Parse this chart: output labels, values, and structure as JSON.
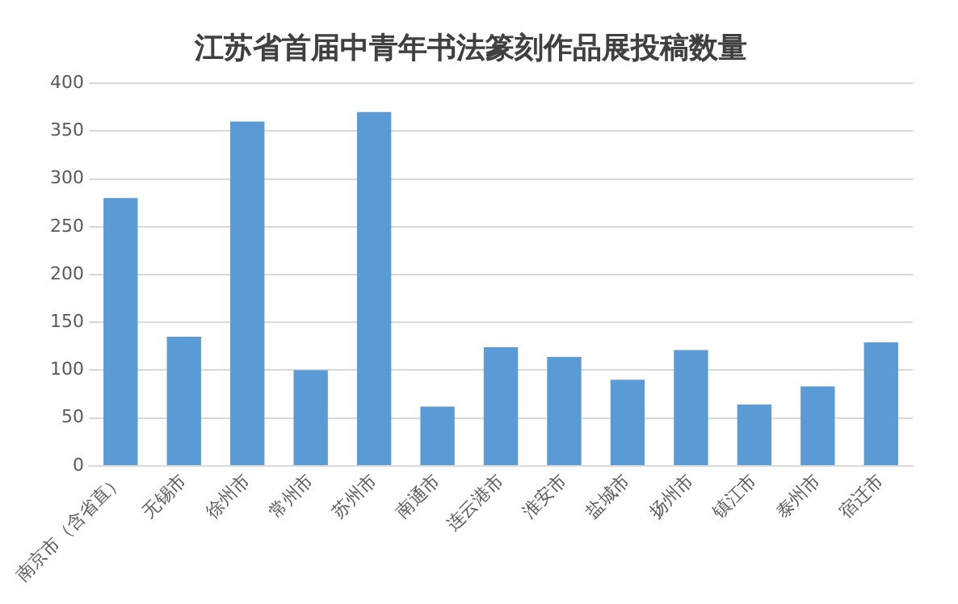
{
  "chart_data": {
    "type": "bar",
    "title": "江苏省首届中青年书法篆刻作品展投稿数量",
    "categories": [
      "南京市（含省直）",
      "无锡市",
      "徐州市",
      "常州市",
      "苏州市",
      "南通市",
      "连云港市",
      "淮安市",
      "盐城市",
      "扬州市",
      "镇江市",
      "泰州市",
      "宿迁市"
    ],
    "values": [
      280,
      135,
      360,
      100,
      370,
      62,
      124,
      114,
      90,
      121,
      64,
      83,
      129
    ],
    "color": "#5b9bd5",
    "ylim": [
      0,
      400
    ],
    "yticks": [
      0,
      50,
      100,
      150,
      200,
      250,
      300,
      350,
      400
    ],
    "grid": "y",
    "legend": false
  }
}
